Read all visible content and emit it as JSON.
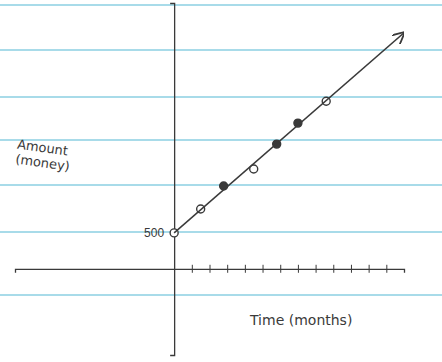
{
  "chart_data": {
    "type": "scatter",
    "xlabel": "Time (months)",
    "ylabel": "Amount (money)",
    "xlim": [
      -9,
      13
    ],
    "ylim": [
      -1200,
      3700
    ],
    "xticks": [
      1,
      2,
      3,
      4,
      5,
      6,
      7,
      8,
      9,
      10,
      11,
      12
    ],
    "yticks": [
      500
    ],
    "tick_labels": "y",
    "grid": false,
    "color": "#3a3a3a",
    "series": [
      {
        "type": "scatter",
        "marker": "circle-open",
        "x": [
          0,
          1.5,
          4.5,
          8.6
        ],
        "values": [
          500,
          833,
          1389,
          2333
        ]
      },
      {
        "type": "scatter",
        "marker": "circle",
        "x": [
          2.8,
          5.8,
          7
        ],
        "values": [
          1153,
          1736,
          2028
        ]
      },
      {
        "type": "line",
        "marker": "arrow",
        "line_style": "solid",
        "x": [
          0,
          13
        ],
        "values": [
          500,
          3286
        ]
      }
    ]
  }
}
